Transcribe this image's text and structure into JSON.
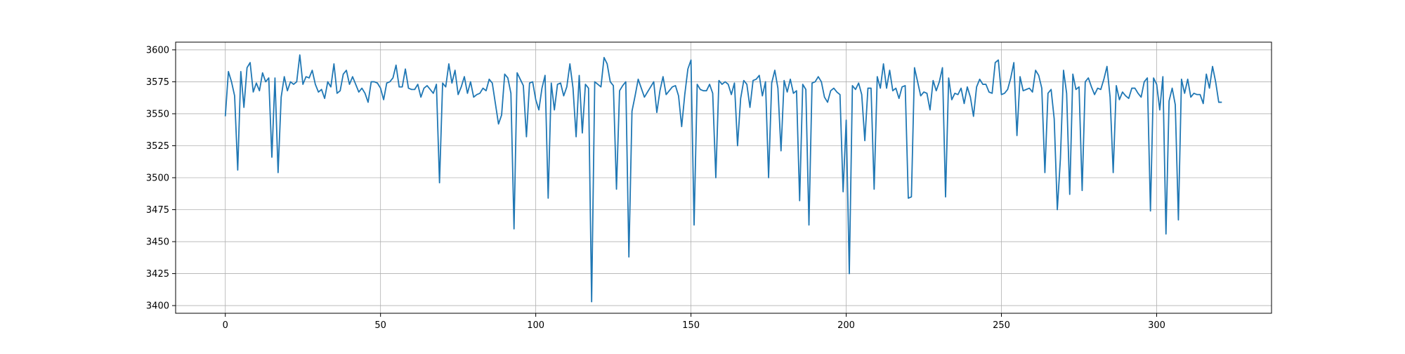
{
  "chart_data": {
    "type": "line",
    "title": "",
    "xlabel": "",
    "ylabel": "",
    "xlim": [
      -16,
      337
    ],
    "ylim": [
      3394,
      3606
    ],
    "xticks": [
      0,
      50,
      100,
      150,
      200,
      250,
      300
    ],
    "yticks": [
      3400,
      3425,
      3450,
      3475,
      3500,
      3525,
      3550,
      3575,
      3600
    ],
    "grid": true,
    "series": [
      {
        "color": "#1f77b4",
        "x_start": 0,
        "x_step": 1,
        "values": [
          3548,
          3583,
          3575,
          3564,
          3506,
          3583,
          3555,
          3586,
          3590,
          3567,
          3574,
          3568,
          3582,
          3575,
          3578,
          3516,
          3578,
          3504,
          3563,
          3579,
          3568,
          3575,
          3573,
          3575,
          3596,
          3573,
          3579,
          3578,
          3584,
          3573,
          3567,
          3569,
          3562,
          3575,
          3571,
          3589,
          3566,
          3568,
          3581,
          3584,
          3573,
          3579,
          3573,
          3567,
          3570,
          3566,
          3559,
          3575,
          3575,
          3574,
          3570,
          3561,
          3574,
          3575,
          3578,
          3588,
          3571,
          3571,
          3585,
          3570,
          3569,
          3569,
          3573,
          3563,
          3570,
          3572,
          3569,
          3566,
          3573,
          3496,
          3574,
          3571,
          3589,
          3574,
          3584,
          3565,
          3571,
          3579,
          3566,
          3575,
          3563,
          3565,
          3566,
          3570,
          3568,
          3577,
          3574,
          3558,
          3542,
          3549,
          3581,
          3578,
          3566,
          3460,
          3582,
          3577,
          3572,
          3532,
          3574,
          3575,
          3561,
          3553,
          3570,
          3580,
          3484,
          3574,
          3553,
          3573,
          3574,
          3564,
          3571,
          3589,
          3570,
          3532,
          3580,
          3535,
          3573,
          3570,
          3403,
          3575,
          3573,
          3571,
          3594,
          3589,
          3575,
          3572,
          3491,
          3568,
          3572,
          3575,
          3438,
          3552,
          3564,
          3577,
          3570,
          3563,
          3567,
          3571,
          3575,
          3551,
          3568,
          3579,
          3565,
          3568,
          3571,
          3572,
          3564,
          3540,
          3565,
          3585,
          3592,
          3463,
          3573,
          3569,
          3568,
          3568,
          3573,
          3566,
          3500,
          3576,
          3573,
          3575,
          3573,
          3565,
          3574,
          3525,
          3562,
          3576,
          3573,
          3555,
          3576,
          3577,
          3580,
          3564,
          3575,
          3500,
          3574,
          3584,
          3570,
          3521,
          3576,
          3567,
          3577,
          3566,
          3568,
          3482,
          3573,
          3569,
          3463,
          3574,
          3575,
          3579,
          3575,
          3563,
          3559,
          3568,
          3570,
          3567,
          3565,
          3489,
          3545,
          3425,
          3572,
          3569,
          3574,
          3565,
          3529,
          3570,
          3570,
          3491,
          3579,
          3570,
          3589,
          3570,
          3584,
          3568,
          3570,
          3562,
          3571,
          3572,
          3484,
          3485,
          3586,
          3575,
          3564,
          3567,
          3566,
          3553,
          3576,
          3568,
          3575,
          3586,
          3485,
          3578,
          3561,
          3566,
          3565,
          3570,
          3558,
          3571,
          3563,
          3548,
          3571,
          3577,
          3573,
          3573,
          3567,
          3566,
          3590,
          3592,
          3565,
          3566,
          3569,
          3578,
          3590,
          3533,
          3579,
          3568,
          3569,
          3570,
          3567,
          3584,
          3580,
          3570,
          3504,
          3566,
          3569,
          3546,
          3475,
          3515,
          3584,
          3566,
          3487,
          3581,
          3569,
          3571,
          3490,
          3575,
          3578,
          3571,
          3565,
          3570,
          3569,
          3577,
          3587,
          3563,
          3504,
          3572,
          3561,
          3567,
          3564,
          3562,
          3570,
          3570,
          3566,
          3563,
          3575,
          3578,
          3474,
          3578,
          3573,
          3553,
          3579,
          3456,
          3560,
          3570,
          3557,
          3467,
          3577,
          3566,
          3577,
          3563,
          3566,
          3565,
          3565,
          3558,
          3581,
          3570,
          3587,
          3575,
          3559,
          3559
        ]
      }
    ]
  }
}
